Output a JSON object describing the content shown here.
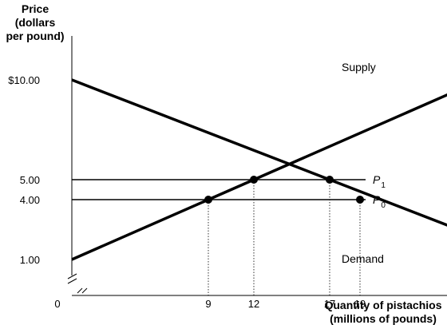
{
  "chart_data": {
    "type": "line",
    "ylabel": [
      "Price",
      "(dollars",
      "per pound)"
    ],
    "xlabel": [
      "Quantity of pistachios",
      "(millions of pounds)"
    ],
    "origin_label": "0",
    "y_ticks": [
      {
        "value": 10,
        "label": "$10.00"
      },
      {
        "value": 5,
        "label": "5.00"
      },
      {
        "value": 4,
        "label": "4.00"
      },
      {
        "value": 1,
        "label": "1.00"
      }
    ],
    "x_ticks": [
      {
        "value": 9,
        "label": "9"
      },
      {
        "value": 12,
        "label": "12"
      },
      {
        "value": 17,
        "label": "17"
      },
      {
        "value": 19,
        "label": "19"
      }
    ],
    "axis_break": true,
    "series": [
      {
        "name": "Supply",
        "points": [
          [
            0,
            1
          ],
          [
            25,
            9.333
          ]
        ]
      },
      {
        "name": "Demand",
        "points": [
          [
            0,
            10
          ],
          [
            25,
            2.647
          ]
        ]
      }
    ],
    "price_lines": [
      {
        "name": "P",
        "sub": "1",
        "value": 5
      },
      {
        "name": "P",
        "sub": "0",
        "value": 4
      }
    ],
    "marked_points": [
      {
        "x": 9,
        "y": 4
      },
      {
        "x": 12,
        "y": 5
      },
      {
        "x": 17,
        "y": 5
      },
      {
        "x": 19,
        "y": 4
      }
    ]
  }
}
